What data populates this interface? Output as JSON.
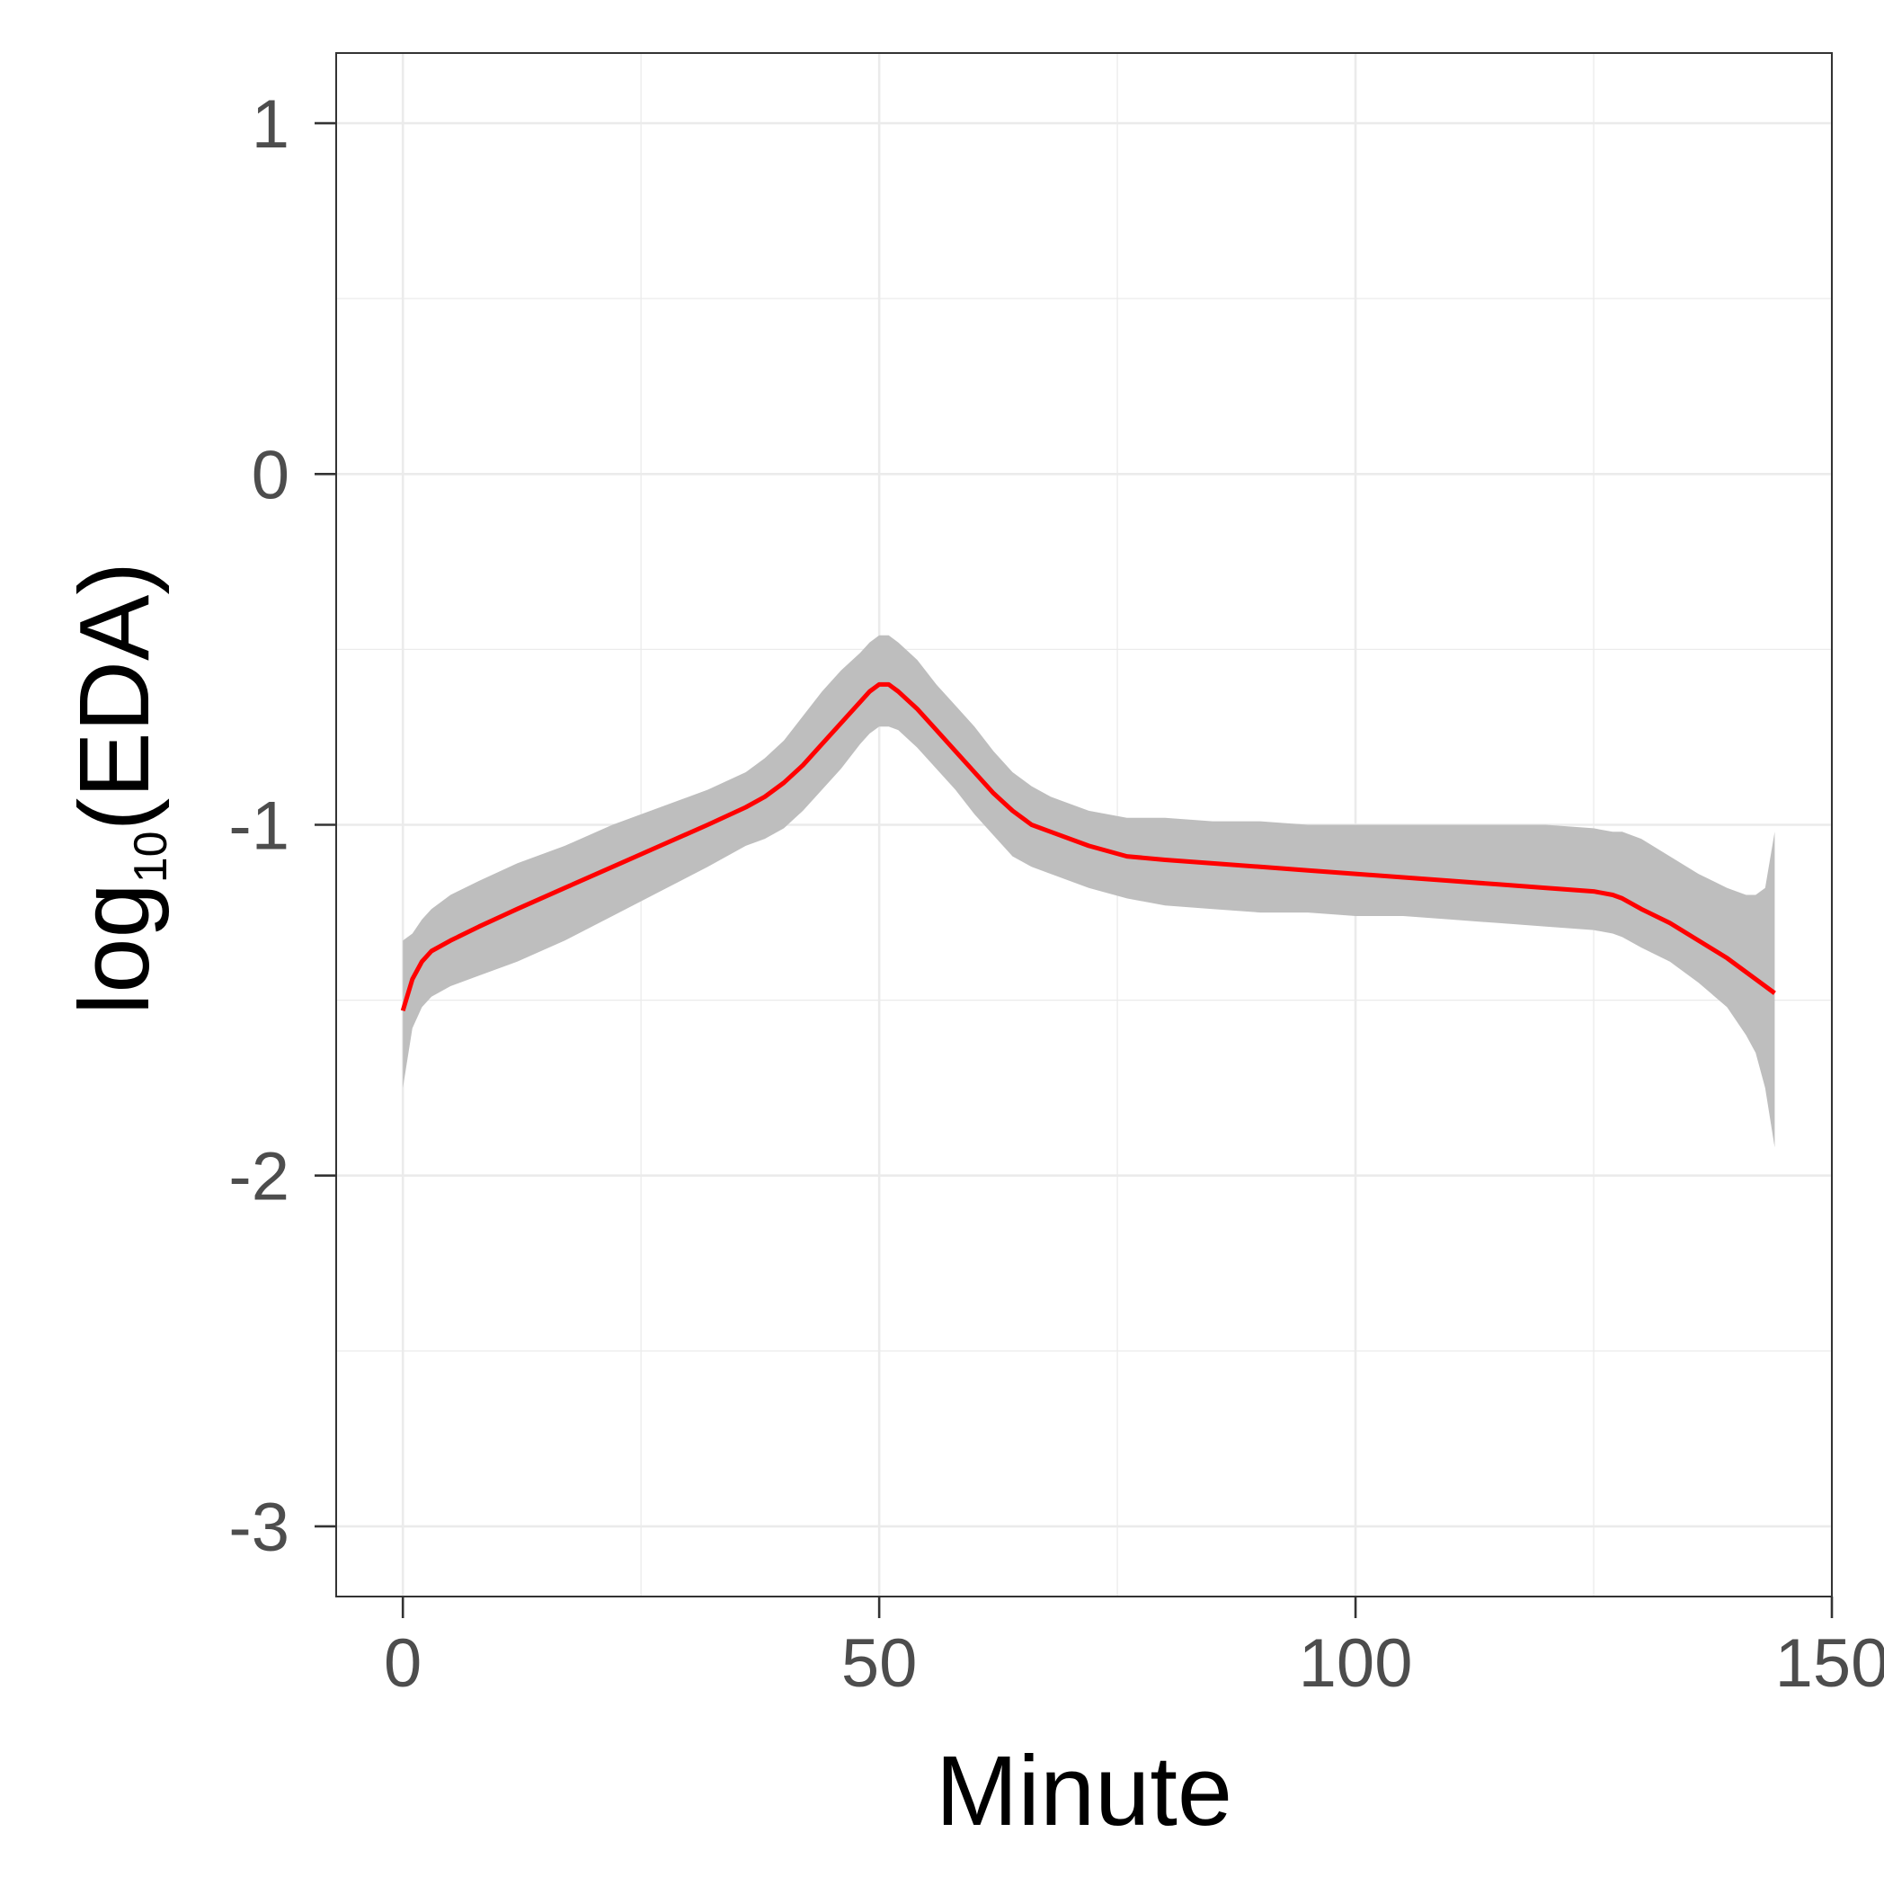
{
  "chart_data": {
    "type": "line",
    "xlabel": "Minute",
    "ylabel": {
      "prefix": "log",
      "subscript": "10",
      "suffix": "(EDA)"
    },
    "xlim": [
      -7,
      150
    ],
    "ylim": [
      -3.2,
      1.2
    ],
    "x_ticks": [
      0,
      50,
      100,
      150
    ],
    "x_tick_labels": [
      "0",
      "50",
      "100",
      "150"
    ],
    "y_ticks": [
      1,
      0,
      -1,
      -2,
      -3
    ],
    "y_tick_labels": [
      "1",
      "0",
      "-1",
      "-2",
      "-3"
    ],
    "grid": true,
    "legend": "none",
    "series": [
      {
        "kind": "smooth-line",
        "color": "#ff0000",
        "x": [
          0,
          1,
          2,
          3,
          5,
          8,
          12,
          17,
          22,
          27,
          32,
          36,
          38,
          40,
          42,
          44,
          46,
          48,
          49,
          50,
          51,
          52,
          54,
          56,
          58,
          60,
          62,
          64,
          66,
          68,
          72,
          76,
          80,
          85,
          90,
          95,
          100,
          105,
          110,
          115,
          120,
          125,
          127,
          128,
          130,
          133,
          136,
          139,
          142,
          144
        ],
        "y": [
          -1.53,
          -1.44,
          -1.39,
          -1.36,
          -1.33,
          -1.29,
          -1.24,
          -1.18,
          -1.12,
          -1.06,
          -1.0,
          -0.95,
          -0.92,
          -0.88,
          -0.83,
          -0.77,
          -0.71,
          -0.65,
          -0.62,
          -0.6,
          -0.6,
          -0.62,
          -0.67,
          -0.73,
          -0.79,
          -0.85,
          -0.91,
          -0.96,
          -1.0,
          -1.02,
          -1.06,
          -1.09,
          -1.1,
          -1.11,
          -1.12,
          -1.13,
          -1.14,
          -1.15,
          -1.16,
          -1.17,
          -1.18,
          -1.19,
          -1.2,
          -1.21,
          -1.24,
          -1.28,
          -1.33,
          -1.38,
          -1.44,
          -1.48
        ]
      }
    ],
    "ribbon": {
      "color": "#bebebe",
      "x": [
        0,
        1,
        2,
        3,
        5,
        8,
        12,
        17,
        22,
        27,
        32,
        36,
        38,
        40,
        42,
        44,
        46,
        48,
        49,
        50,
        51,
        52,
        54,
        56,
        58,
        60,
        62,
        64,
        66,
        68,
        72,
        76,
        80,
        85,
        90,
        95,
        100,
        105,
        110,
        115,
        120,
        125,
        127,
        128,
        130,
        133,
        136,
        139,
        141,
        142,
        143,
        144
      ],
      "upper": [
        -1.33,
        -1.31,
        -1.27,
        -1.24,
        -1.2,
        -1.16,
        -1.11,
        -1.06,
        -1.0,
        -0.95,
        -0.9,
        -0.85,
        -0.81,
        -0.76,
        -0.69,
        -0.62,
        -0.56,
        -0.51,
        -0.48,
        -0.46,
        -0.46,
        -0.48,
        -0.53,
        -0.6,
        -0.66,
        -0.72,
        -0.79,
        -0.85,
        -0.89,
        -0.92,
        -0.96,
        -0.98,
        -0.98,
        -0.99,
        -0.99,
        -1.0,
        -1.0,
        -1.0,
        -1.0,
        -1.0,
        -1.0,
        -1.01,
        -1.02,
        -1.02,
        -1.04,
        -1.09,
        -1.14,
        -1.18,
        -1.2,
        -1.2,
        -1.18,
        -1.02
      ],
      "lower": [
        -1.75,
        -1.58,
        -1.52,
        -1.49,
        -1.46,
        -1.43,
        -1.39,
        -1.33,
        -1.26,
        -1.19,
        -1.12,
        -1.06,
        -1.04,
        -1.01,
        -0.96,
        -0.9,
        -0.84,
        -0.77,
        -0.74,
        -0.72,
        -0.72,
        -0.73,
        -0.78,
        -0.84,
        -0.9,
        -0.97,
        -1.03,
        -1.09,
        -1.12,
        -1.14,
        -1.18,
        -1.21,
        -1.23,
        -1.24,
        -1.25,
        -1.25,
        -1.26,
        -1.26,
        -1.27,
        -1.28,
        -1.29,
        -1.3,
        -1.31,
        -1.32,
        -1.35,
        -1.39,
        -1.45,
        -1.52,
        -1.6,
        -1.65,
        -1.75,
        -1.92
      ]
    }
  }
}
